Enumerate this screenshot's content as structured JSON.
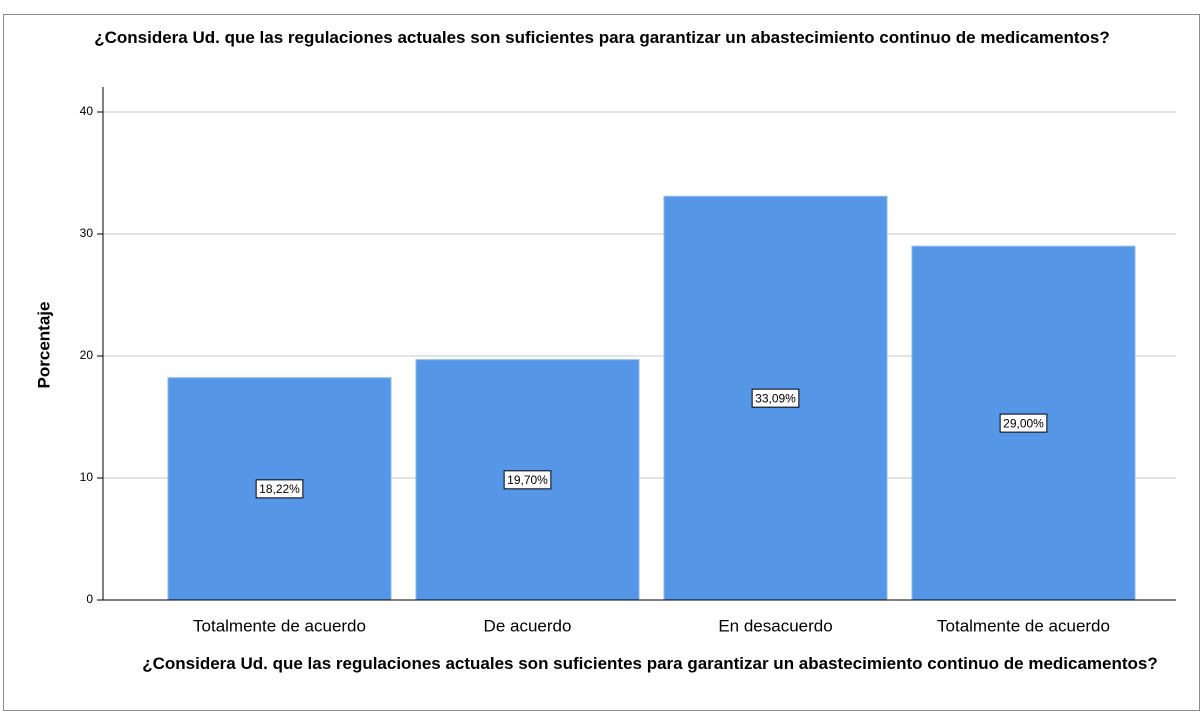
{
  "chart_data": {
    "type": "bar",
    "title": "¿Considera Ud. que las regulaciones actuales son suficientes para garantizar un abastecimiento continuo de medicamentos?",
    "x_label": "¿Considera Ud. que las regulaciones actuales son suficientes para garantizar un abastecimiento continuo de medicamentos?",
    "y_label": "Porcentaje",
    "categories": [
      "Totalmente de acuerdo",
      "De acuerdo",
      "En desacuerdo",
      "Totalmente de acuerdo"
    ],
    "values": [
      18.22,
      19.7,
      33.09,
      29.0
    ],
    "value_labels": [
      "18,22%",
      "19,70%",
      "33,09%",
      "29,00%"
    ],
    "color": "#5596e6",
    "ylim": [
      0,
      40
    ],
    "yticks": [
      0,
      10,
      20,
      30,
      40
    ],
    "grid": true
  }
}
